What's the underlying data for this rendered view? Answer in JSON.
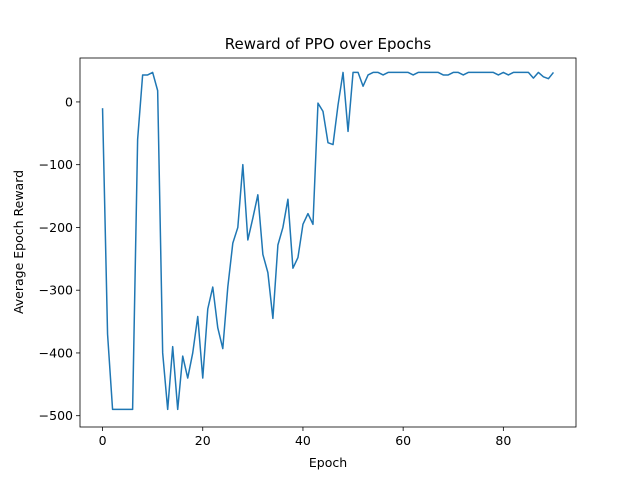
{
  "chart_data": {
    "type": "line",
    "title": "Reward of PPO over Epochs",
    "xlabel": "Epoch",
    "ylabel": "Average Epoch Reward",
    "xlim": [
      -4.5,
      94.5
    ],
    "ylim": [
      -518,
      70
    ],
    "xticks": [
      0,
      20,
      40,
      60,
      80
    ],
    "yticks": [
      -500,
      -400,
      -300,
      -200,
      -100,
      0
    ],
    "ytick_labels": [
      "−500",
      "−400",
      "−300",
      "−200",
      "−100",
      "0"
    ],
    "xtick_labels": [
      "0",
      "20",
      "40",
      "60",
      "80"
    ],
    "grid": false,
    "series": [
      {
        "color": "#1f77b4",
        "x": [
          0,
          1,
          2,
          3,
          4,
          5,
          6,
          7,
          8,
          9,
          10,
          11,
          12,
          13,
          14,
          15,
          16,
          17,
          18,
          19,
          20,
          21,
          22,
          23,
          24,
          25,
          26,
          27,
          28,
          29,
          30,
          31,
          32,
          33,
          34,
          35,
          36,
          37,
          38,
          39,
          40,
          41,
          42,
          43,
          44,
          45,
          46,
          47,
          48,
          49,
          50,
          51,
          52,
          53,
          54,
          55,
          56,
          57,
          58,
          59,
          60,
          61,
          62,
          63,
          64,
          65,
          66,
          67,
          68,
          69,
          70,
          71,
          72,
          73,
          74,
          75,
          76,
          77,
          78,
          79,
          80,
          81,
          82,
          83,
          84,
          85,
          86,
          87,
          88,
          89,
          90
        ],
        "values": [
          -10,
          -370,
          -490,
          -490,
          -490,
          -490,
          -490,
          -60,
          43,
          43,
          47,
          18,
          -400,
          -490,
          -390,
          -490,
          -405,
          -440,
          -400,
          -342,
          -440,
          -330,
          -295,
          -360,
          -393,
          -295,
          -225,
          -200,
          -100,
          -220,
          -185,
          -148,
          -243,
          -272,
          -345,
          -228,
          -200,
          -155,
          -265,
          -248,
          -195,
          -178,
          -195,
          -2,
          -15,
          -65,
          -68,
          -5,
          47,
          -47,
          47,
          47,
          25,
          43,
          47,
          47,
          43,
          47,
          47,
          47,
          47,
          47,
          43,
          47,
          47,
          47,
          47,
          47,
          43,
          43,
          47,
          47,
          43,
          47,
          47,
          47,
          47,
          47,
          47,
          43,
          47,
          43,
          47,
          47,
          47,
          47,
          38,
          47,
          40,
          37,
          47
        ]
      }
    ]
  }
}
